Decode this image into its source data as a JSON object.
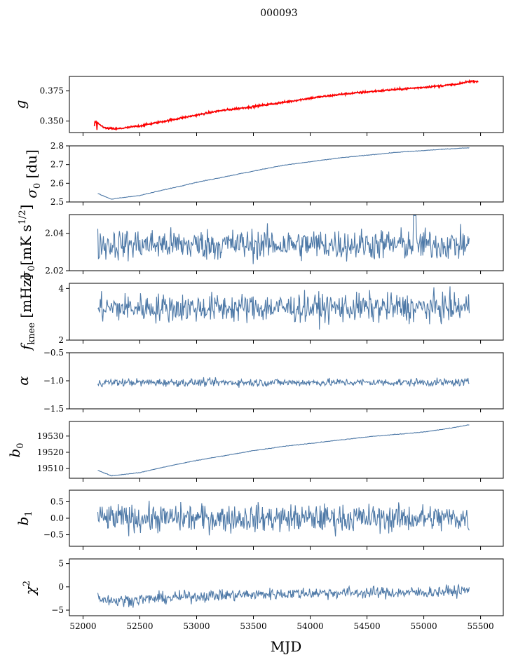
{
  "suptitle": "000093",
  "xlabel": "MJD",
  "colors": {
    "line": "#4e79a7",
    "overlay": "#ff0000",
    "axis": "#000000"
  },
  "chart_data": [
    {
      "type": "line",
      "ylabel": "g",
      "ylabel_sup": "",
      "ylim": [
        0.3405,
        0.387
      ],
      "xlim": [
        51880,
        55700
      ],
      "yticks": [
        0.35,
        0.375
      ],
      "ytick_labels": [
        "0.350",
        "0.375"
      ],
      "x_tick_labels_shown": false,
      "overlay": "red noisy trace following the blue series",
      "series_points": {
        "x": [
          52110,
          52200,
          52300,
          52500,
          52750,
          53000,
          53200,
          53500,
          53800,
          54000,
          54300,
          54600,
          55000,
          55300,
          55400
        ],
        "y": [
          0.349,
          0.344,
          0.3435,
          0.346,
          0.3505,
          0.355,
          0.3585,
          0.362,
          0.366,
          0.369,
          0.3725,
          0.375,
          0.378,
          0.3805,
          0.383
        ]
      }
    },
    {
      "type": "line",
      "ylabel": "σ₀ [du]",
      "ylim": [
        2.5,
        2.8
      ],
      "xlim": [
        51880,
        55700
      ],
      "yticks": [
        2.5,
        2.6,
        2.7,
        2.8
      ],
      "ytick_labels": [
        "2.5",
        "2.6",
        "2.7",
        "2.8"
      ],
      "x_tick_labels_shown": false,
      "series_points": {
        "x": [
          52130,
          52250,
          52500,
          52750,
          53000,
          53250,
          53500,
          53750,
          54000,
          54250,
          54500,
          54750,
          55000,
          55250,
          55400
        ],
        "y": [
          2.545,
          2.515,
          2.535,
          2.57,
          2.605,
          2.635,
          2.665,
          2.695,
          2.715,
          2.735,
          2.75,
          2.765,
          2.775,
          2.785,
          2.79
        ]
      }
    },
    {
      "type": "line",
      "ylabel": "σ₀[mK s^1/2]",
      "ylim": [
        2.02,
        2.05
      ],
      "xlim": [
        51880,
        55700
      ],
      "yticks": [
        2.02,
        2.04
      ],
      "ytick_labels": [
        "2.02",
        "2.04"
      ],
      "x_tick_labels_shown": false,
      "noise": {
        "mean": 2.034,
        "amplitude": 0.006,
        "spike": {
          "x": 54920,
          "y": 2.0495
        }
      }
    },
    {
      "type": "line",
      "ylabel": "f_knee [mHz]",
      "ylim": [
        2,
        4.2
      ],
      "xlim": [
        51880,
        55700
      ],
      "yticks": [
        2,
        4
      ],
      "ytick_labels": [
        "2",
        "4"
      ],
      "x_tick_labels_shown": false,
      "noise": {
        "mean": 3.25,
        "amplitude": 0.4
      }
    },
    {
      "type": "line",
      "ylabel": "α",
      "ylim": [
        -1.5,
        -0.5
      ],
      "xlim": [
        51880,
        55700
      ],
      "yticks": [
        -1.5,
        -1.0,
        -0.5
      ],
      "ytick_labels": [
        "−1.5",
        "−1.0",
        "−0.5"
      ],
      "x_tick_labels_shown": false,
      "noise": {
        "mean": -1.03,
        "amplitude": 0.05
      }
    },
    {
      "type": "line",
      "ylabel": "b₀",
      "ylim": [
        19504,
        19539
      ],
      "xlim": [
        51880,
        55700
      ],
      "yticks": [
        19510,
        19520,
        19530
      ],
      "ytick_labels": [
        "19510",
        "19520",
        "19530"
      ],
      "x_tick_labels_shown": false,
      "series_points": {
        "x": [
          52130,
          52250,
          52500,
          52750,
          53000,
          53250,
          53500,
          53750,
          54000,
          54250,
          54500,
          54750,
          55000,
          55250,
          55400
        ],
        "y": [
          19509,
          19505.5,
          19507.5,
          19511.5,
          19515,
          19518,
          19521,
          19523.5,
          19525.5,
          19527.5,
          19529.5,
          19531,
          19532.5,
          19535,
          19537
        ]
      }
    },
    {
      "type": "line",
      "ylabel": "b₁",
      "ylim": [
        -0.85,
        0.85
      ],
      "xlim": [
        51880,
        55700
      ],
      "yticks": [
        -0.5,
        0.0,
        0.5
      ],
      "ytick_labels": [
        "−0.5",
        "0.0",
        "0.5"
      ],
      "x_tick_labels_shown": false,
      "noise": {
        "mean": 0.0,
        "amplitude": 0.3
      }
    },
    {
      "type": "line",
      "ylabel": "χ²",
      "ylim": [
        -6.2,
        6
      ],
      "xlim": [
        51880,
        55700
      ],
      "yticks": [
        -5,
        0,
        5
      ],
      "ytick_labels": [
        "−5",
        "0",
        "5"
      ],
      "x_tick_labels_shown": true,
      "xticks": [
        52000,
        52500,
        53000,
        53500,
        54000,
        54500,
        55000,
        55500
      ],
      "xtick_labels": [
        "52000",
        "52500",
        "53000",
        "53500",
        "54000",
        "54500",
        "55000",
        "55500"
      ],
      "trend": {
        "x": [
          52130,
          52300,
          53000,
          54000,
          55000,
          55400
        ],
        "y": [
          -2.3,
          -3.0,
          -2.0,
          -1.3,
          -1.2,
          -0.8
        ],
        "amplitude": 0.9
      }
    }
  ]
}
